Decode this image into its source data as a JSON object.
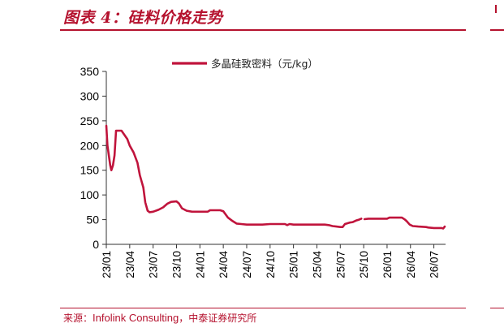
{
  "header": {
    "title": "图表 4：硅料价格走势"
  },
  "footer": {
    "source_label": "来源：",
    "source_en": "Infolink Consulting",
    "source_cn": "，中泰证券研究所"
  },
  "colors": {
    "accent": "#b5122e",
    "series": "#c0143c",
    "axis": "#333333"
  },
  "chart_data": {
    "type": "line",
    "title": "",
    "xlabel": "",
    "ylabel": "",
    "ylim": [
      0,
      350
    ],
    "yticks": [
      0,
      50,
      100,
      150,
      200,
      250,
      300,
      350
    ],
    "xticks": [
      "23/01",
      "23/04",
      "23/07",
      "23/10",
      "24/01",
      "24/04",
      "24/07",
      "24/10",
      "25/01",
      "25/04",
      "25/07",
      "25/10",
      "26/01",
      "26/04",
      "26/07"
    ],
    "xrange": [
      0,
      43.5
    ],
    "grid": false,
    "legend": "top-center",
    "series": [
      {
        "name": "多晶硅致密料（元/kg）",
        "segments": [
          [
            [
              0,
              240
            ],
            [
              0.15,
              200
            ],
            [
              0.5,
              160
            ],
            [
              0.65,
              150
            ],
            [
              0.85,
              160
            ],
            [
              1.05,
              180
            ],
            [
              1.25,
              230
            ],
            [
              1.55,
              230
            ],
            [
              1.95,
              230
            ],
            [
              2.3,
              222
            ],
            [
              2.7,
              213
            ],
            [
              3,
              200
            ],
            [
              3.5,
              186
            ],
            [
              4,
              165
            ],
            [
              4.3,
              140
            ],
            [
              4.75,
              115
            ],
            [
              5,
              85
            ],
            [
              5.3,
              68
            ],
            [
              5.55,
              65
            ],
            [
              6,
              66
            ],
            [
              6.7,
              70
            ],
            [
              7.3,
              75
            ],
            [
              7.8,
              82
            ],
            [
              8.3,
              86
            ],
            [
              9,
              87
            ],
            [
              9.3,
              83
            ],
            [
              9.7,
              73
            ],
            [
              10.3,
              68
            ],
            [
              11,
              66
            ],
            [
              12.5,
              66
            ],
            [
              13,
              66
            ],
            [
              13.3,
              69
            ],
            [
              14,
              69
            ],
            [
              14.6,
              69
            ],
            [
              15,
              67
            ],
            [
              15.6,
              54
            ],
            [
              16.2,
              47
            ],
            [
              16.7,
              42
            ],
            [
              17.3,
              41
            ],
            [
              18,
              40
            ],
            [
              19,
              40
            ],
            [
              20,
              40
            ],
            [
              21,
              41
            ],
            [
              22,
              41
            ],
            [
              22.9,
              41
            ],
            [
              23.2,
              39
            ],
            [
              23.5,
              41
            ],
            [
              24,
              40
            ],
            [
              25,
              40
            ],
            [
              26,
              40
            ],
            [
              27,
              40
            ],
            [
              28,
              40
            ],
            [
              28.5,
              39
            ],
            [
              29,
              37
            ],
            [
              29.5,
              36
            ],
            [
              30,
              35
            ],
            [
              30.3,
              35
            ],
            [
              30.6,
              41
            ],
            [
              31.2,
              44
            ],
            [
              31.6,
              45
            ],
            [
              32,
              48
            ],
            [
              32.4,
              50
            ],
            [
              32.7,
              52
            ]
          ],
          [
            [
              33.1,
              51
            ],
            [
              33.6,
              52
            ],
            [
              34,
              52
            ],
            [
              35,
              52
            ],
            [
              36,
              52
            ],
            [
              36.3,
              54
            ],
            [
              37,
              54
            ],
            [
              37.5,
              54
            ],
            [
              37.9,
              54
            ],
            [
              38.3,
              50
            ],
            [
              38.5,
              47
            ],
            [
              38.9,
              40
            ],
            [
              39.3,
              37
            ],
            [
              40,
              36
            ],
            [
              41,
              35
            ],
            [
              41.3,
              34
            ],
            [
              42,
              33
            ],
            [
              43,
              33
            ],
            [
              43.2,
              32
            ],
            [
              43.4,
              36
            ]
          ]
        ]
      }
    ]
  }
}
